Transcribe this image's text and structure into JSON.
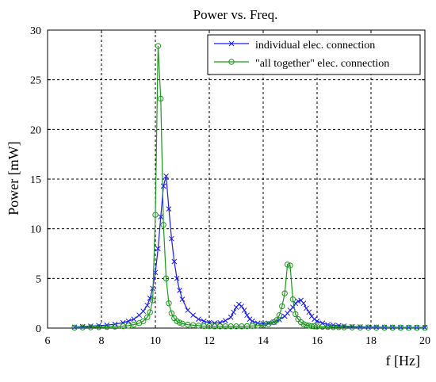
{
  "chart_data": {
    "type": "line",
    "title": "Power vs. Freq.",
    "xlabel": "f [Hz]",
    "ylabel": "Power [mW]",
    "xlim": [
      6,
      20
    ],
    "ylim": [
      0,
      30
    ],
    "xticks": [
      6,
      8,
      10,
      12,
      14,
      16,
      18,
      20
    ],
    "yticks": [
      0,
      5,
      10,
      15,
      20,
      25,
      30
    ],
    "grid": true,
    "legend_position": "top-right",
    "series": [
      {
        "name": "individual elec. connection",
        "color": "#1a1aff",
        "marker": "x",
        "x": [
          7.0,
          7.3,
          7.6,
          7.9,
          8.2,
          8.5,
          8.8,
          9.0,
          9.2,
          9.4,
          9.55,
          9.7,
          9.8,
          9.9,
          10.0,
          10.1,
          10.2,
          10.3,
          10.4,
          10.5,
          10.6,
          10.7,
          10.8,
          10.9,
          11.0,
          11.2,
          11.4,
          11.6,
          11.8,
          12.0,
          12.2,
          12.4,
          12.6,
          12.8,
          12.9,
          13.0,
          13.1,
          13.2,
          13.3,
          13.4,
          13.5,
          13.6,
          13.8,
          14.0,
          14.2,
          14.4,
          14.6,
          14.8,
          14.9,
          15.0,
          15.1,
          15.2,
          15.3,
          15.4,
          15.5,
          15.6,
          15.7,
          15.8,
          15.9,
          16.0,
          16.2,
          16.4,
          16.6,
          16.8,
          17.0,
          17.3,
          17.6,
          17.9,
          18.2,
          18.5,
          18.8,
          19.1,
          19.4,
          19.7,
          20.0
        ],
        "y": [
          0.1,
          0.15,
          0.2,
          0.25,
          0.3,
          0.4,
          0.55,
          0.7,
          0.9,
          1.3,
          1.7,
          2.3,
          3.0,
          4.0,
          5.6,
          8.0,
          11.2,
          14.3,
          15.3,
          12.0,
          9.0,
          6.7,
          5.0,
          3.8,
          2.9,
          1.8,
          1.3,
          0.9,
          0.7,
          0.55,
          0.5,
          0.55,
          0.75,
          1.1,
          1.6,
          2.1,
          2.4,
          2.2,
          1.8,
          1.3,
          0.9,
          0.7,
          0.5,
          0.45,
          0.5,
          0.6,
          0.85,
          1.2,
          1.5,
          1.8,
          2.1,
          2.5,
          2.7,
          2.8,
          2.5,
          2.0,
          1.6,
          1.2,
          0.9,
          0.7,
          0.5,
          0.35,
          0.3,
          0.25,
          0.2,
          0.15,
          0.12,
          0.1,
          0.1,
          0.08,
          0.08,
          0.07,
          0.07,
          0.06,
          0.06
        ]
      },
      {
        "name": "\"all together\" elec. connection",
        "color": "#1a9a1a",
        "marker": "o",
        "x": [
          7.0,
          7.3,
          7.6,
          7.9,
          8.2,
          8.5,
          8.8,
          9.0,
          9.2,
          9.4,
          9.55,
          9.7,
          9.8,
          9.9,
          10.0,
          10.1,
          10.2,
          10.3,
          10.4,
          10.5,
          10.6,
          10.7,
          10.8,
          10.9,
          11.0,
          11.2,
          11.4,
          11.6,
          11.8,
          12.0,
          12.2,
          12.4,
          12.6,
          12.8,
          13.0,
          13.2,
          13.4,
          13.6,
          13.8,
          14.0,
          14.2,
          14.4,
          14.5,
          14.6,
          14.7,
          14.8,
          14.9,
          15.0,
          15.1,
          15.2,
          15.3,
          15.4,
          15.5,
          15.6,
          15.7,
          15.8,
          15.9,
          16.0,
          16.2,
          16.4,
          16.6,
          16.8,
          17.0,
          17.3,
          17.6,
          17.9,
          18.2,
          18.5,
          18.8,
          19.1,
          19.4,
          19.7,
          20.0
        ],
        "y": [
          0.05,
          0.07,
          0.08,
          0.1,
          0.12,
          0.15,
          0.2,
          0.25,
          0.35,
          0.5,
          0.7,
          1.1,
          1.6,
          2.8,
          11.4,
          28.4,
          23.1,
          10.4,
          5.0,
          2.5,
          1.5,
          1.0,
          0.7,
          0.55,
          0.45,
          0.35,
          0.3,
          0.25,
          0.2,
          0.2,
          0.18,
          0.18,
          0.18,
          0.18,
          0.18,
          0.18,
          0.2,
          0.22,
          0.25,
          0.3,
          0.4,
          0.6,
          0.8,
          1.3,
          2.2,
          3.5,
          6.4,
          6.3,
          2.9,
          1.4,
          0.9,
          0.6,
          0.4,
          0.3,
          0.25,
          0.2,
          0.18,
          0.16,
          0.14,
          0.12,
          0.1,
          0.1,
          0.08,
          0.07,
          0.06,
          0.06,
          0.05,
          0.05,
          0.05,
          0.05,
          0.04,
          0.04,
          0.04
        ]
      }
    ]
  }
}
